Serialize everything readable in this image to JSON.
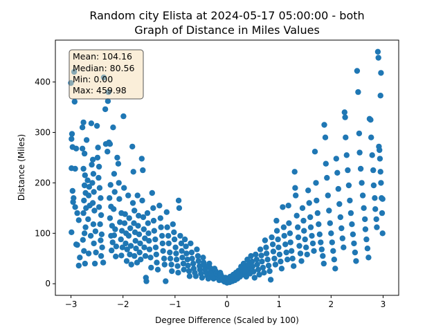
{
  "chart_data": {
    "type": "scatter",
    "title_line1": "Random city Elista at 2024-05-17 05:00:00  - both",
    "title_line2": "Graph of Distance in Miles Values",
    "xlabel": "Degree Difference (Scaled by 100)",
    "ylabel": "Distance (Miles)",
    "xlim": [
      -3.3,
      3.3
    ],
    "ylim": [
      -23,
      483
    ],
    "xticks": [
      -3,
      -2,
      -1,
      0,
      1,
      2,
      3
    ],
    "yticks": [
      0,
      100,
      200,
      300,
      400
    ],
    "grid": false,
    "marker_color": "#1f77b4",
    "stats_box": {
      "mean": "Mean: 104.16",
      "median": "Median: 80.56",
      "min": "Min: 0.00",
      "max": "Max: 459.98",
      "facecolor": "#f5deb3",
      "edgecolor": "#555555"
    },
    "points": [
      [
        -3.0,
        398
      ],
      [
        -2.94,
        420
      ],
      [
        -2.93,
        361
      ],
      [
        -2.98,
        297
      ],
      [
        -2.99,
        287
      ],
      [
        -2.97,
        271
      ],
      [
        -2.9,
        268
      ],
      [
        -2.99,
        229
      ],
      [
        -2.92,
        228
      ],
      [
        -2.97,
        184
      ],
      [
        -2.95,
        170
      ],
      [
        -2.96,
        162
      ],
      [
        -2.92,
        152
      ],
      [
        -2.88,
        140
      ],
      [
        -2.85,
        126
      ],
      [
        -2.99,
        102
      ],
      [
        -2.9,
        78
      ],
      [
        -2.88,
        77
      ],
      [
        -2.83,
        52
      ],
      [
        -2.85,
        36
      ],
      [
        -2.78,
        310
      ],
      [
        -2.76,
        320
      ],
      [
        -2.78,
        268
      ],
      [
        -2.74,
        258
      ],
      [
        -2.76,
        228
      ],
      [
        -2.73,
        215
      ],
      [
        -2.74,
        195
      ],
      [
        -2.72,
        180
      ],
      [
        -2.75,
        165
      ],
      [
        -2.71,
        150
      ],
      [
        -2.76,
        140
      ],
      [
        -2.72,
        112
      ],
      [
        -2.74,
        100
      ],
      [
        -2.77,
        87
      ],
      [
        -2.75,
        65
      ],
      [
        -2.73,
        40
      ],
      [
        -2.7,
        285
      ],
      [
        -2.68,
        205
      ],
      [
        -2.65,
        192
      ],
      [
        -2.66,
        175
      ],
      [
        -2.64,
        155
      ],
      [
        -2.67,
        128
      ],
      [
        -2.62,
        95
      ],
      [
        -2.66,
        60
      ],
      [
        -2.61,
        318
      ],
      [
        -2.58,
        246
      ],
      [
        -2.6,
        236
      ],
      [
        -2.57,
        218
      ],
      [
        -2.59,
        200
      ],
      [
        -2.56,
        182
      ],
      [
        -2.58,
        160
      ],
      [
        -2.55,
        145
      ],
      [
        -2.57,
        118
      ],
      [
        -2.53,
        104
      ],
      [
        -2.56,
        80
      ],
      [
        -2.52,
        62
      ],
      [
        -2.54,
        40
      ],
      [
        -2.5,
        313
      ],
      [
        -2.48,
        270
      ],
      [
        -2.49,
        250
      ],
      [
        -2.46,
        232
      ],
      [
        -2.47,
        210
      ],
      [
        -2.45,
        190
      ],
      [
        -2.43,
        170
      ],
      [
        -2.46,
        152
      ],
      [
        -2.42,
        136
      ],
      [
        -2.44,
        118
      ],
      [
        -2.41,
        98
      ],
      [
        -2.43,
        86
      ],
      [
        -2.4,
        72
      ],
      [
        -2.42,
        55
      ],
      [
        -2.38,
        42
      ],
      [
        -2.37,
        409
      ],
      [
        -2.34,
        346
      ],
      [
        -2.33,
        277
      ],
      [
        -2.3,
        262
      ],
      [
        -2.28,
        380
      ],
      [
        -2.29,
        362
      ],
      [
        -2.27,
        280
      ],
      [
        -2.25,
        277
      ],
      [
        -2.24,
        196
      ],
      [
        -2.26,
        170
      ],
      [
        -2.23,
        153
      ],
      [
        -2.25,
        130
      ],
      [
        -2.21,
        115
      ],
      [
        -2.23,
        95
      ],
      [
        -2.2,
        82
      ],
      [
        -2.22,
        66
      ],
      [
        -2.19,
        310
      ],
      [
        -2.17,
        218
      ],
      [
        -2.16,
        182
      ],
      [
        -2.18,
        148
      ],
      [
        -2.15,
        108
      ],
      [
        -2.17,
        96
      ],
      [
        -2.13,
        74
      ],
      [
        -2.14,
        54
      ],
      [
        -2.11,
        250
      ],
      [
        -2.09,
        238
      ],
      [
        -2.08,
        200
      ],
      [
        -2.07,
        168
      ],
      [
        -2.03,
        140
      ],
      [
        -2.06,
        122
      ],
      [
        -2.02,
        105
      ],
      [
        -2.04,
        88
      ],
      [
        -2.01,
        72
      ],
      [
        -2.03,
        56
      ],
      [
        -1.99,
        332
      ],
      [
        -1.98,
        190
      ],
      [
        -1.96,
        138
      ],
      [
        -1.97,
        120
      ],
      [
        -1.94,
        100
      ],
      [
        -1.95,
        80
      ],
      [
        -1.92,
        68
      ],
      [
        -1.93,
        45
      ],
      [
        -1.9,
        175
      ],
      [
        -1.88,
        130
      ],
      [
        -1.86,
        110
      ],
      [
        -1.89,
        95
      ],
      [
        -1.85,
        75
      ],
      [
        -1.87,
        58
      ],
      [
        -1.84,
        38
      ],
      [
        -1.82,
        272
      ],
      [
        -1.8,
        222
      ],
      [
        -1.81,
        160
      ],
      [
        -1.78,
        145
      ],
      [
        -1.79,
        120
      ],
      [
        -1.77,
        102
      ],
      [
        -1.76,
        85
      ],
      [
        -1.75,
        70
      ],
      [
        -1.78,
        55
      ],
      [
        -1.73,
        42
      ],
      [
        -1.72,
        175
      ],
      [
        -1.7,
        135
      ],
      [
        -1.71,
        115
      ],
      [
        -1.69,
        98
      ],
      [
        -1.67,
        80
      ],
      [
        -1.68,
        62
      ],
      [
        -1.66,
        48
      ],
      [
        -1.64,
        248
      ],
      [
        -1.62,
        225
      ],
      [
        -1.63,
        165
      ],
      [
        -1.61,
        132
      ],
      [
        -1.6,
        108
      ],
      [
        -1.58,
        90
      ],
      [
        -1.59,
        72
      ],
      [
        -1.57,
        55
      ],
      [
        -1.56,
        12
      ],
      [
        -1.55,
        5
      ],
      [
        -1.53,
        140
      ],
      [
        -1.52,
        120
      ],
      [
        -1.51,
        100
      ],
      [
        -1.5,
        85
      ],
      [
        -1.49,
        68
      ],
      [
        -1.47,
        52
      ],
      [
        -1.46,
        32
      ],
      [
        -1.44,
        180
      ],
      [
        -1.42,
        150
      ],
      [
        -1.41,
        125
      ],
      [
        -1.4,
        105
      ],
      [
        -1.38,
        88
      ],
      [
        -1.37,
        72
      ],
      [
        -1.36,
        58
      ],
      [
        -1.35,
        42
      ],
      [
        -1.33,
        28
      ],
      [
        -1.3,
        155
      ],
      [
        -1.28,
        130
      ],
      [
        -1.27,
        112
      ],
      [
        -1.25,
        95
      ],
      [
        -1.24,
        80
      ],
      [
        -1.23,
        65
      ],
      [
        -1.21,
        50
      ],
      [
        -1.2,
        38
      ],
      [
        -1.18,
        5
      ],
      [
        -1.16,
        142
      ],
      [
        -1.15,
        112
      ],
      [
        -1.13,
        95
      ],
      [
        -1.12,
        80
      ],
      [
        -1.1,
        62
      ],
      [
        -1.09,
        50
      ],
      [
        -1.07,
        38
      ],
      [
        -1.06,
        25
      ],
      [
        -1.04,
        118
      ],
      [
        -1.02,
        102
      ],
      [
        -1.01,
        88
      ],
      [
        -0.99,
        72
      ],
      [
        -0.98,
        60
      ],
      [
        -0.97,
        48
      ],
      [
        -0.95,
        35
      ],
      [
        -0.94,
        22
      ],
      [
        -0.93,
        165
      ],
      [
        -0.92,
        150
      ],
      [
        -0.9,
        95
      ],
      [
        -0.88,
        80
      ],
      [
        -0.87,
        65
      ],
      [
        -0.86,
        52
      ],
      [
        -0.84,
        40
      ],
      [
        -0.83,
        28
      ],
      [
        -0.81,
        88
      ],
      [
        -0.79,
        74
      ],
      [
        -0.78,
        60
      ],
      [
        -0.76,
        48
      ],
      [
        -0.75,
        36
      ],
      [
        -0.73,
        25
      ],
      [
        -0.72,
        15
      ],
      [
        -0.7,
        80
      ],
      [
        -0.68,
        62
      ],
      [
        -0.67,
        50
      ],
      [
        -0.65,
        40
      ],
      [
        -0.64,
        30
      ],
      [
        -0.62,
        22
      ],
      [
        -0.6,
        15
      ],
      [
        -0.58,
        68
      ],
      [
        -0.56,
        55
      ],
      [
        -0.55,
        45
      ],
      [
        -0.53,
        35
      ],
      [
        -0.52,
        28
      ],
      [
        -0.5,
        20
      ],
      [
        -0.48,
        12
      ],
      [
        -0.46,
        52
      ],
      [
        -0.45,
        42
      ],
      [
        -0.43,
        35
      ],
      [
        -0.42,
        28
      ],
      [
        -0.4,
        22
      ],
      [
        -0.38,
        16
      ],
      [
        -0.36,
        10
      ],
      [
        -0.34,
        40
      ],
      [
        -0.33,
        32
      ],
      [
        -0.31,
        26
      ],
      [
        -0.3,
        20
      ],
      [
        -0.28,
        15
      ],
      [
        -0.26,
        10
      ],
      [
        -0.24,
        30
      ],
      [
        -0.22,
        25
      ],
      [
        -0.21,
        20
      ],
      [
        -0.19,
        15
      ],
      [
        -0.17,
        11
      ],
      [
        -0.15,
        7
      ],
      [
        -0.13,
        22
      ],
      [
        -0.12,
        18
      ],
      [
        -0.1,
        14
      ],
      [
        -0.08,
        10
      ],
      [
        -0.07,
        6
      ],
      [
        -0.05,
        4
      ],
      [
        -0.03,
        12
      ],
      [
        -0.02,
        8
      ],
      [
        0.0,
        2
      ],
      [
        0.01,
        6
      ],
      [
        0.03,
        10
      ],
      [
        0.05,
        3
      ],
      [
        0.06,
        14
      ],
      [
        0.08,
        8
      ],
      [
        0.1,
        5
      ],
      [
        0.12,
        18
      ],
      [
        0.13,
        12
      ],
      [
        0.15,
        7
      ],
      [
        0.17,
        22
      ],
      [
        0.19,
        15
      ],
      [
        0.2,
        10
      ],
      [
        0.22,
        26
      ],
      [
        0.24,
        20
      ],
      [
        0.25,
        14
      ],
      [
        0.27,
        34
      ],
      [
        0.29,
        26
      ],
      [
        0.3,
        18
      ],
      [
        0.32,
        40
      ],
      [
        0.34,
        32
      ],
      [
        0.35,
        22
      ],
      [
        0.37,
        14
      ],
      [
        0.39,
        48
      ],
      [
        0.41,
        38
      ],
      [
        0.42,
        28
      ],
      [
        0.44,
        20
      ],
      [
        0.46,
        55
      ],
      [
        0.48,
        44
      ],
      [
        0.49,
        34
      ],
      [
        0.51,
        24
      ],
      [
        0.53,
        12
      ],
      [
        0.55,
        58
      ],
      [
        0.57,
        48
      ],
      [
        0.58,
        38
      ],
      [
        0.6,
        28
      ],
      [
        0.62,
        18
      ],
      [
        0.64,
        68
      ],
      [
        0.66,
        56
      ],
      [
        0.67,
        44
      ],
      [
        0.69,
        32
      ],
      [
        0.71,
        22
      ],
      [
        0.73,
        86
      ],
      [
        0.75,
        72
      ],
      [
        0.76,
        60
      ],
      [
        0.78,
        48
      ],
      [
        0.8,
        36
      ],
      [
        0.82,
        25
      ],
      [
        0.84,
        8
      ],
      [
        0.86,
        92
      ],
      [
        0.88,
        78
      ],
      [
        0.89,
        64
      ],
      [
        0.91,
        50
      ],
      [
        0.93,
        38
      ],
      [
        0.95,
        125
      ],
      [
        0.96,
        105
      ],
      [
        0.98,
        88
      ],
      [
        0.99,
        72
      ],
      [
        1.01,
        58
      ],
      [
        1.03,
        44
      ],
      [
        1.05,
        30
      ],
      [
        1.07,
        152
      ],
      [
        1.09,
        112
      ],
      [
        1.1,
        95
      ],
      [
        1.12,
        78
      ],
      [
        1.14,
        62
      ],
      [
        1.16,
        48
      ],
      [
        1.18,
        155
      ],
      [
        1.19,
        120
      ],
      [
        1.21,
        100
      ],
      [
        1.22,
        82
      ],
      [
        1.24,
        65
      ],
      [
        1.26,
        50
      ],
      [
        1.28,
        35
      ],
      [
        1.3,
        222
      ],
      [
        1.31,
        190
      ],
      [
        1.32,
        175
      ],
      [
        1.34,
        135
      ],
      [
        1.36,
        112
      ],
      [
        1.37,
        92
      ],
      [
        1.39,
        75
      ],
      [
        1.41,
        60
      ],
      [
        1.43,
        45
      ],
      [
        1.45,
        150
      ],
      [
        1.47,
        125
      ],
      [
        1.48,
        105
      ],
      [
        1.5,
        88
      ],
      [
        1.52,
        72
      ],
      [
        1.54,
        58
      ],
      [
        1.56,
        185
      ],
      [
        1.58,
        160
      ],
      [
        1.6,
        132
      ],
      [
        1.61,
        112
      ],
      [
        1.63,
        95
      ],
      [
        1.65,
        80
      ],
      [
        1.67,
        65
      ],
      [
        1.69,
        262
      ],
      [
        1.71,
        200
      ],
      [
        1.72,
        165
      ],
      [
        1.74,
        140
      ],
      [
        1.76,
        118
      ],
      [
        1.78,
        98
      ],
      [
        1.8,
        82
      ],
      [
        1.82,
        68
      ],
      [
        1.84,
        55
      ],
      [
        1.86,
        40
      ],
      [
        1.87,
        315
      ],
      [
        1.89,
        290
      ],
      [
        1.9,
        238
      ],
      [
        1.92,
        210
      ],
      [
        1.94,
        175
      ],
      [
        1.96,
        145
      ],
      [
        1.98,
        120
      ],
      [
        2.0,
        100
      ],
      [
        2.02,
        82
      ],
      [
        2.04,
        65
      ],
      [
        2.06,
        48
      ],
      [
        2.08,
        30
      ],
      [
        2.1,
        248
      ],
      [
        2.12,
        220
      ],
      [
        2.14,
        188
      ],
      [
        2.16,
        158
      ],
      [
        2.18,
        132
      ],
      [
        2.2,
        110
      ],
      [
        2.22,
        90
      ],
      [
        2.24,
        72
      ],
      [
        2.26,
        340
      ],
      [
        2.27,
        330
      ],
      [
        2.28,
        290
      ],
      [
        2.3,
        255
      ],
      [
        2.32,
        225
      ],
      [
        2.34,
        195
      ],
      [
        2.36,
        165
      ],
      [
        2.38,
        140
      ],
      [
        2.4,
        118
      ],
      [
        2.42,
        98
      ],
      [
        2.44,
        80
      ],
      [
        2.46,
        62
      ],
      [
        2.48,
        45
      ],
      [
        2.5,
        422
      ],
      [
        2.52,
        380
      ],
      [
        2.54,
        298
      ],
      [
        2.55,
        260
      ],
      [
        2.57,
        228
      ],
      [
        2.59,
        200
      ],
      [
        2.61,
        175
      ],
      [
        2.63,
        150
      ],
      [
        2.65,
        128
      ],
      [
        2.66,
        108
      ],
      [
        2.68,
        88
      ],
      [
        2.7,
        70
      ],
      [
        2.72,
        52
      ],
      [
        2.74,
        327
      ],
      [
        2.76,
        325
      ],
      [
        2.77,
        290
      ],
      [
        2.79,
        255
      ],
      [
        2.81,
        225
      ],
      [
        2.82,
        195
      ],
      [
        2.84,
        170
      ],
      [
        2.85,
        148
      ],
      [
        2.87,
        128
      ],
      [
        2.88,
        112
      ],
      [
        2.9,
        460
      ],
      [
        2.91,
        448
      ],
      [
        2.92,
        272
      ],
      [
        2.93,
        265
      ],
      [
        2.94,
        248
      ],
      [
        2.95,
        222
      ],
      [
        2.96,
        200
      ],
      [
        2.97,
        170
      ],
      [
        2.98,
        140
      ],
      [
        2.99,
        100
      ],
      [
        2.96,
        418
      ],
      [
        2.95,
        373
      ],
      [
        2.99,
        168
      ]
    ]
  }
}
